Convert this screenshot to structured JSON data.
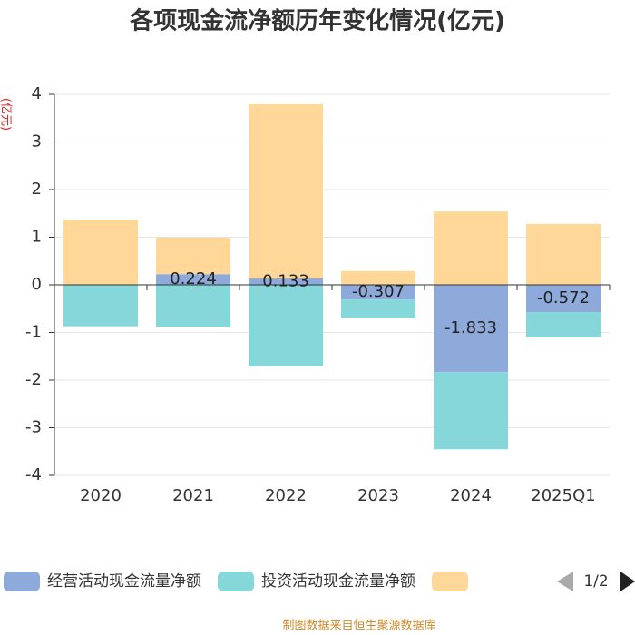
{
  "chart_data": {
    "type": "stacked_bar",
    "title": "各项现金流净额历年变化情况(亿元)",
    "y_label": "(亿元)",
    "categories": [
      "2020",
      "2021",
      "2022",
      "2023",
      "2024",
      "2025Q1"
    ],
    "series": [
      {
        "name": "经营活动现金流量净额",
        "color": "#8eaadb",
        "values": [
          null,
          0.224,
          0.133,
          -0.307,
          -1.833,
          -0.572
        ],
        "show_labels": true
      },
      {
        "name": "投资活动现金流量净额",
        "color": "#86d7d9",
        "values": [
          -0.87,
          -0.88,
          -1.71,
          -0.38,
          -1.62,
          -0.53
        ]
      },
      {
        "color": "#ffd899",
        "values": [
          1.37,
          0.77,
          3.66,
          0.29,
          1.54,
          1.28
        ]
      }
    ],
    "ylim": [
      -4,
      4
    ],
    "yticks": [
      -4,
      -3,
      -2,
      -1,
      0,
      1,
      2,
      3,
      4
    ],
    "grid": true,
    "legend_page": "1/2",
    "source": "制图数据来自恒生聚源数据库"
  }
}
